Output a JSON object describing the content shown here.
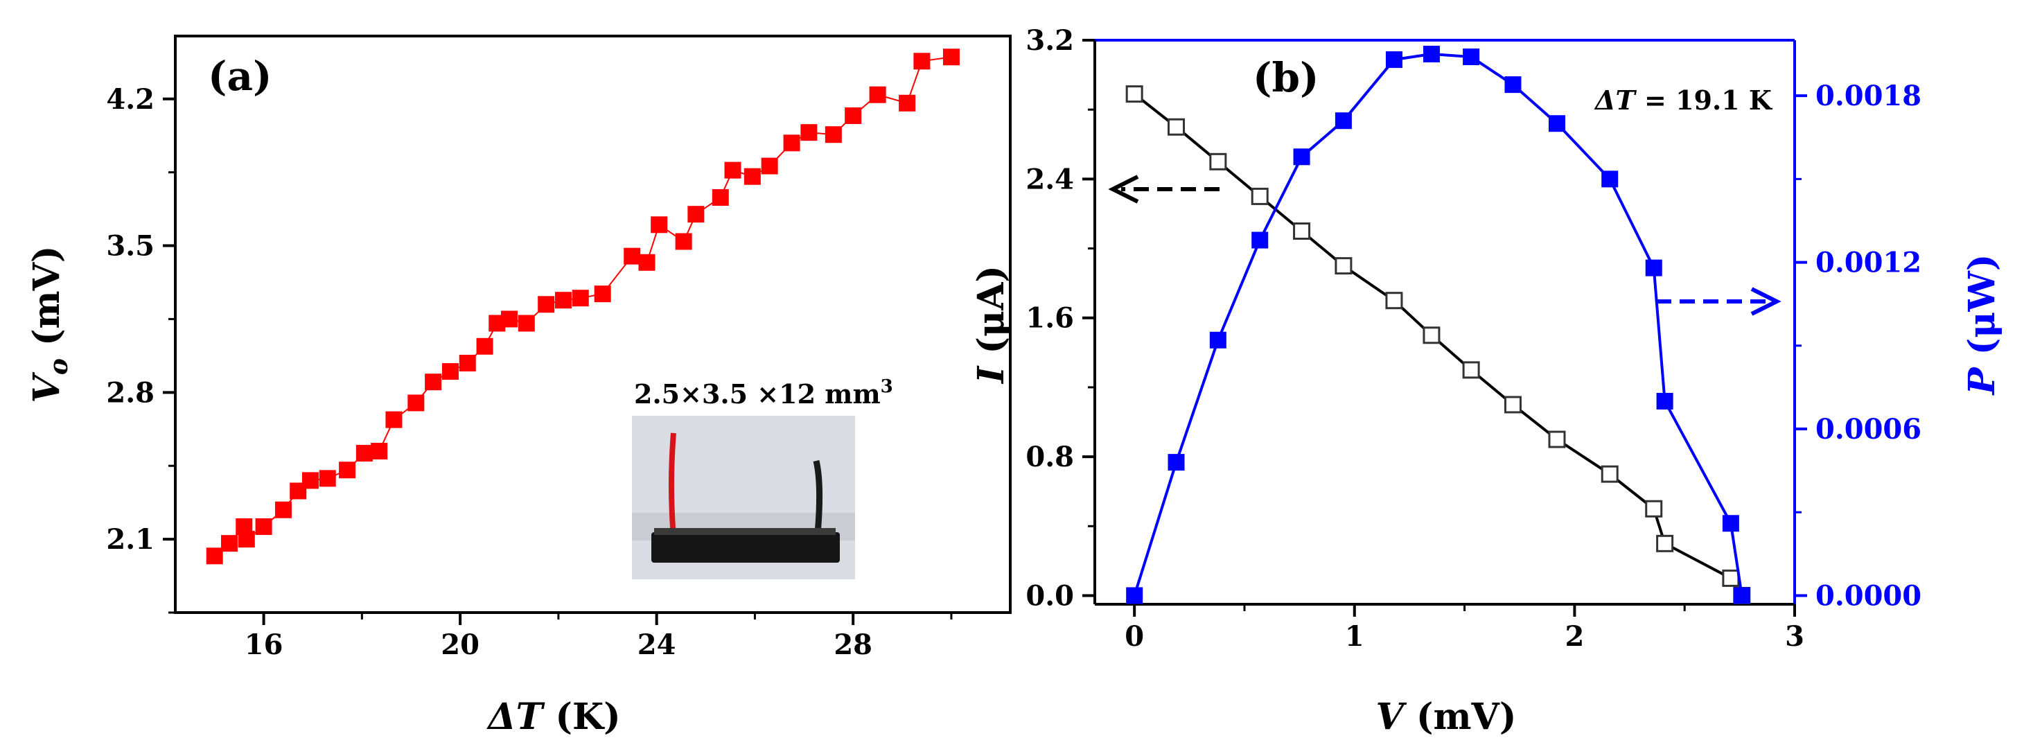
{
  "chart_data": [
    {
      "panel": "(a)",
      "type": "scatter",
      "xlabel": {
        "sym": "ΔT",
        "unit": " (K)"
      },
      "ylabel": {
        "sym": "V",
        "sub": "o",
        "unit": " (mV)"
      },
      "xlim": [
        14.2,
        31.2
      ],
      "ylim": [
        1.75,
        4.5
      ],
      "xticks": [
        16,
        20,
        24,
        28
      ],
      "xtick_labels": [
        "16",
        "20",
        "24",
        "28"
      ],
      "yticks": [
        2.1,
        2.8,
        3.5,
        4.2
      ],
      "ytick_labels": [
        "2.1",
        "2.8",
        "3.5",
        "4.2"
      ],
      "color": "#ff0000",
      "inset_label": {
        "text": "2.5×3.5 ×12 mm",
        "sup": "3"
      },
      "series": [
        {
          "name": "Vo",
          "x": [
            15.0,
            15.3,
            15.6,
            15.65,
            16.0,
            16.4,
            16.7,
            16.95,
            17.3,
            17.7,
            18.05,
            18.35,
            18.65,
            19.1,
            19.45,
            19.8,
            20.15,
            20.5,
            20.75,
            21.0,
            21.35,
            21.75,
            22.1,
            22.45,
            22.9,
            23.5,
            23.8,
            24.05,
            24.55,
            24.8,
            25.3,
            25.55,
            25.95,
            26.3,
            26.75,
            27.1,
            27.6,
            28.0,
            28.5,
            29.1,
            29.4,
            30.0
          ],
          "y": [
            2.02,
            2.08,
            2.16,
            2.1,
            2.16,
            2.24,
            2.33,
            2.38,
            2.39,
            2.43,
            2.51,
            2.52,
            2.67,
            2.75,
            2.85,
            2.9,
            2.94,
            3.02,
            3.13,
            3.15,
            3.13,
            3.22,
            3.24,
            3.25,
            3.27,
            3.45,
            3.42,
            3.6,
            3.52,
            3.65,
            3.73,
            3.86,
            3.83,
            3.88,
            3.99,
            4.04,
            4.03,
            4.12,
            4.22,
            4.18,
            4.38,
            4.4
          ]
        }
      ]
    },
    {
      "panel": "(b)",
      "type": "line",
      "xlabel": {
        "sym": "V",
        "unit": " (mV)"
      },
      "ylabel_left": {
        "sym": "I",
        "unit": " (μA)"
      },
      "ylabel_right": {
        "sym": "P",
        "unit": " (μW)"
      },
      "annotation": {
        "sym": "ΔT",
        "rest": " = 19.1 K"
      },
      "xlim": [
        -0.18,
        3.0
      ],
      "ylim_left": [
        -0.05,
        3.2
      ],
      "ylim_right": [
        -3.13e-05,
        0.002
      ],
      "xticks": [
        0,
        1,
        2,
        3
      ],
      "xtick_labels": [
        "0",
        "1",
        "2",
        "3"
      ],
      "yticks_left": [
        0.0,
        0.8,
        1.6,
        2.4,
        3.2
      ],
      "ytick_labels_left": [
        "0.0",
        "0.8",
        "1.6",
        "2.4",
        "3.2"
      ],
      "yticks_right": [
        0.0,
        0.0006,
        0.0012,
        0.0018
      ],
      "ytick_labels_right": [
        "0.0000",
        "0.0006",
        "0.0012",
        "0.0018"
      ],
      "left_color": "#000000",
      "right_color": "#0000ff",
      "series": [
        {
          "name": "I",
          "axis": "left",
          "marker": "open-square",
          "x": [
            0.0,
            0.19,
            0.38,
            0.57,
            0.76,
            0.95,
            1.18,
            1.35,
            1.53,
            1.72,
            1.92,
            2.16,
            2.36,
            2.41,
            2.71,
            2.76
          ],
          "y": [
            2.89,
            2.7,
            2.5,
            2.3,
            2.1,
            1.9,
            1.7,
            1.5,
            1.3,
            1.1,
            0.9,
            0.7,
            0.5,
            0.3,
            0.1,
            0.0
          ]
        },
        {
          "name": "P",
          "axis": "right",
          "marker": "filled-square",
          "x": [
            0.0,
            0.19,
            0.38,
            0.57,
            0.76,
            0.95,
            1.18,
            1.35,
            1.53,
            1.72,
            1.92,
            2.16,
            2.36,
            2.41,
            2.71,
            2.76
          ],
          "y": [
            0.0,
            0.00048,
            0.00092,
            0.00128,
            0.00158,
            0.00171,
            0.00193,
            0.00195,
            0.00194,
            0.00184,
            0.0017,
            0.0015,
            0.00118,
            0.0007,
            0.00026,
            0.0
          ]
        }
      ]
    }
  ]
}
